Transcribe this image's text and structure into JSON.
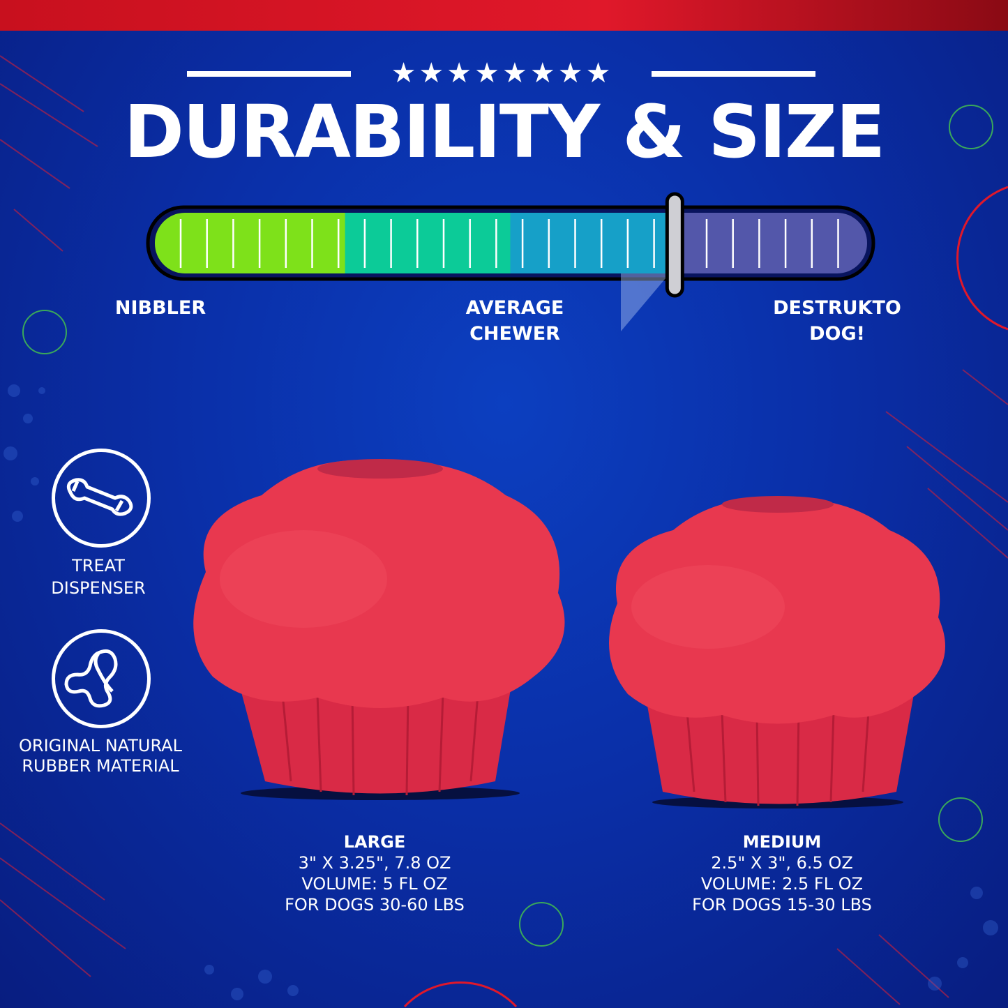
{
  "header": {
    "title": "DURABILITY & SIZE",
    "stars": "★★★★★★★★"
  },
  "meter": {
    "value_percent": 73,
    "labels": {
      "low": "NIBBLER",
      "mid_line1": "AVERAGE",
      "mid_line2": "CHEWER",
      "high_line1": "DESTRUKTO",
      "high_line2": "DOG!"
    },
    "segment_colors": [
      "#7ee11a",
      "#0ccb98",
      "#16a0c8",
      "#5357aa"
    ]
  },
  "features": [
    {
      "icon": "bone-icon",
      "line1": "TREAT",
      "line2": "DISPENSER"
    },
    {
      "icon": "rubber-band-icon",
      "line1": "ORIGINAL NATURAL",
      "line2": "RUBBER MATERIAL"
    }
  ],
  "sizes": [
    {
      "name": "LARGE",
      "dims": "3\" X 3.25\", 7.8 OZ",
      "volume": "VOLUME: 5 FL OZ",
      "dogs": "FOR DOGS 30-60 LBS"
    },
    {
      "name": "MEDIUM",
      "dims": "2.5\" X 3\", 6.5 OZ",
      "volume": "VOLUME: 2.5 FL OZ",
      "dogs": "FOR DOGS 15-30 LBS"
    }
  ],
  "colors": {
    "background": "#0a2fa8",
    "accent_red": "#e0182a",
    "product": "#e8344e"
  }
}
